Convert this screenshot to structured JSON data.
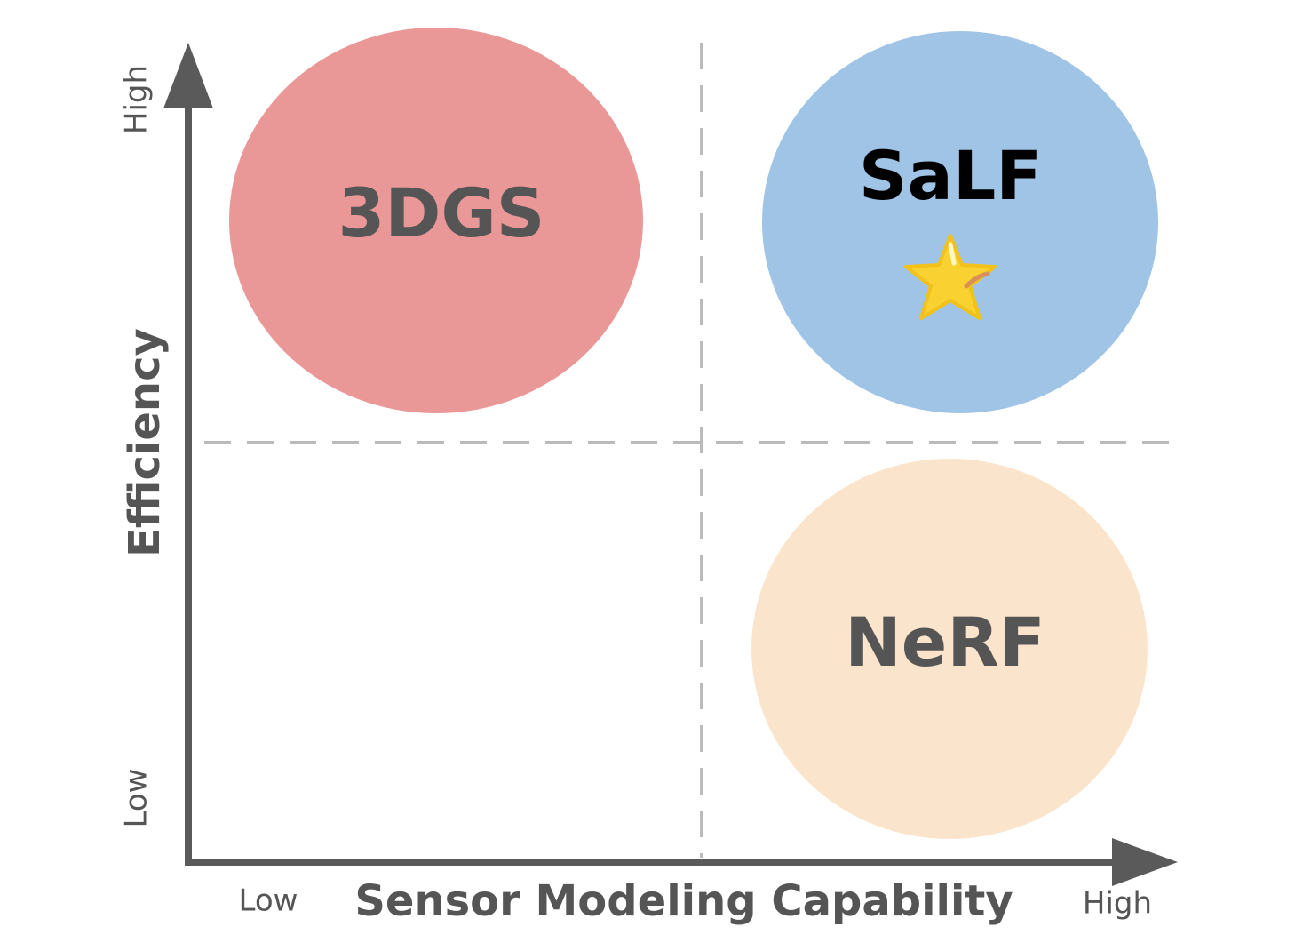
{
  "axes": {
    "x": {
      "label": "Sensor Modeling Capability",
      "low": "Low",
      "high": "High"
    },
    "y": {
      "label": "Efficiency",
      "low": "Low",
      "high": "High"
    }
  },
  "nodes": [
    {
      "label": "3DGS"
    },
    {
      "label": "SaLF"
    },
    {
      "label": "NeRF"
    }
  ]
}
